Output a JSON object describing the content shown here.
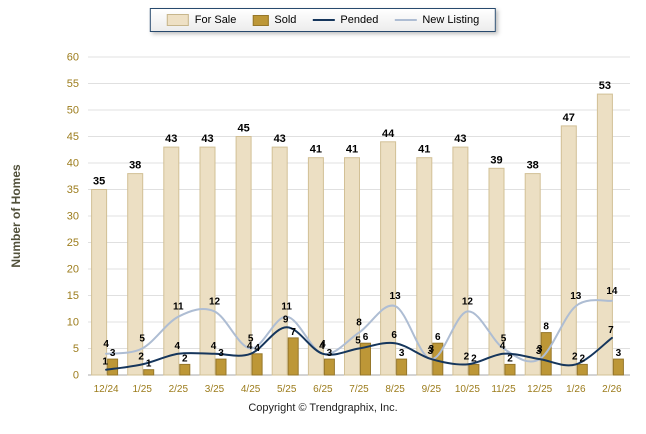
{
  "chart_data": {
    "type": "bar",
    "title": "",
    "categories": [
      "12/24",
      "1/25",
      "2/25",
      "3/25",
      "4/25",
      "5/25",
      "6/25",
      "7/25",
      "8/25",
      "9/25",
      "10/25",
      "11/25",
      "12/25",
      "1/26",
      "2/26"
    ],
    "series": [
      {
        "name": "For Sale",
        "kind": "bar",
        "color": "#ecdfc3",
        "border": "#d2c096",
        "values": [
          35,
          38,
          43,
          43,
          45,
          43,
          41,
          41,
          44,
          41,
          43,
          39,
          38,
          47,
          53
        ]
      },
      {
        "name": "Sold",
        "kind": "bar",
        "color": "#bd9737",
        "border": "#96772a",
        "values": [
          3,
          1,
          2,
          3,
          4,
          7,
          3,
          6,
          3,
          6,
          2,
          2,
          8,
          2,
          3
        ]
      },
      {
        "name": "Pended",
        "kind": "line",
        "color": "#16365c",
        "values": [
          1,
          2,
          4,
          4,
          4,
          9,
          4,
          5,
          6,
          3,
          2,
          4,
          3,
          2,
          7
        ]
      },
      {
        "name": "New Listing",
        "kind": "line",
        "color": "#aebdd3",
        "values": [
          4,
          5,
          11,
          12,
          5,
          11,
          4,
          8,
          13,
          3,
          12,
          5,
          3,
          13,
          14
        ]
      }
    ],
    "xlabel": "",
    "ylabel": "Number of Homes",
    "ylim": [
      0,
      60
    ],
    "ytick_step": 5,
    "grid": true,
    "legend_position": "top",
    "axis_tick_color": "#9c7c1c",
    "ylabel_color": "#51503a",
    "grid_color": "#e0e0e0",
    "value_label_color": "#000000"
  },
  "footer": {
    "copyright": "Copyright © Trendgraphix, Inc."
  }
}
